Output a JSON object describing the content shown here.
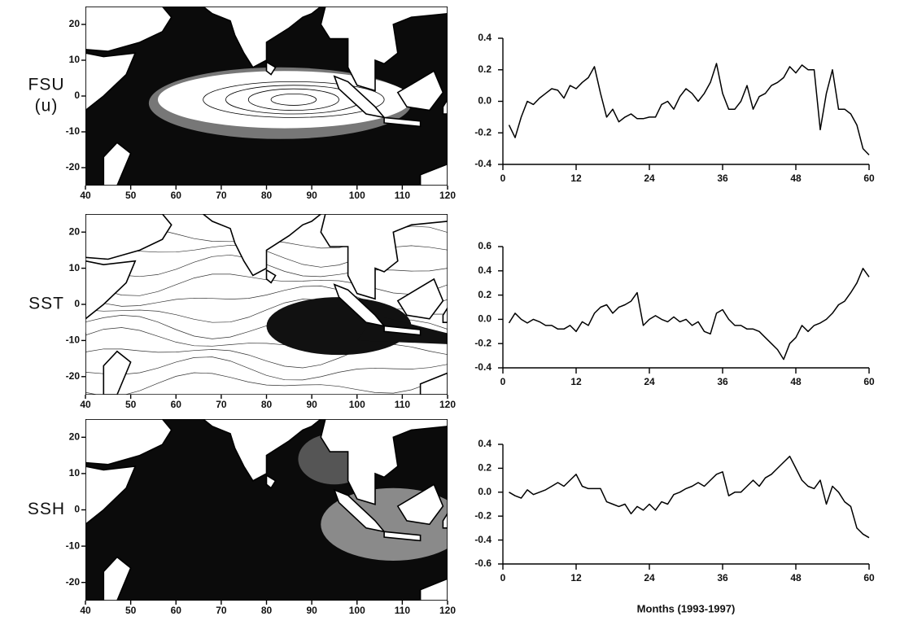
{
  "chart_data": [
    {
      "type": "map",
      "label": [
        "FSU",
        "(u)"
      ],
      "variant": "fsu",
      "xlim": [
        40,
        120
      ],
      "xticks": [
        40,
        50,
        60,
        70,
        80,
        90,
        100,
        110,
        120
      ],
      "ylim": [
        -25,
        25
      ],
      "yticks": [
        20,
        10,
        0,
        -10,
        -20
      ]
    },
    {
      "type": "line",
      "color": "#000000",
      "x": [
        1,
        2,
        3,
        4,
        5,
        6,
        7,
        8,
        9,
        10,
        11,
        12,
        13,
        14,
        15,
        16,
        17,
        18,
        19,
        20,
        21,
        22,
        23,
        24,
        25,
        26,
        27,
        28,
        29,
        30,
        31,
        32,
        33,
        34,
        35,
        36,
        37,
        38,
        39,
        40,
        41,
        42,
        43,
        44,
        45,
        46,
        47,
        48,
        49,
        50,
        51,
        52,
        53,
        54,
        55,
        56,
        57,
        58,
        59,
        60
      ],
      "values": [
        -0.15,
        -0.23,
        -0.1,
        0.0,
        -0.02,
        0.02,
        0.05,
        0.08,
        0.07,
        0.02,
        0.1,
        0.08,
        0.12,
        0.15,
        0.22,
        0.05,
        -0.1,
        -0.05,
        -0.13,
        -0.1,
        -0.08,
        -0.11,
        -0.11,
        -0.1,
        -0.1,
        -0.02,
        0.0,
        -0.05,
        0.03,
        0.08,
        0.05,
        0.0,
        0.05,
        0.12,
        0.24,
        0.05,
        -0.05,
        -0.05,
        0.0,
        0.1,
        -0.05,
        0.03,
        0.05,
        0.1,
        0.12,
        0.15,
        0.22,
        0.18,
        0.23,
        0.2,
        0.2,
        -0.18,
        0.05,
        0.2,
        -0.05,
        -0.05,
        -0.08,
        -0.15,
        -0.3,
        -0.34
      ],
      "xlim": [
        0,
        60
      ],
      "xticks": [
        0,
        12,
        24,
        36,
        48,
        60
      ],
      "ylim": [
        -0.4,
        0.4
      ],
      "yticks": [
        0.4,
        0.2,
        {
          "value": 0,
          "label": "0.0"
        },
        -0.2,
        -0.4
      ]
    },
    {
      "type": "map",
      "label": [
        "SST"
      ],
      "variant": "sst",
      "xlim": [
        40,
        120
      ],
      "xticks": [
        40,
        50,
        60,
        70,
        80,
        90,
        100,
        110,
        120
      ],
      "ylim": [
        -25,
        25
      ],
      "yticks": [
        20,
        10,
        0,
        -10,
        -20
      ]
    },
    {
      "type": "line",
      "color": "#000000",
      "x": [
        1,
        2,
        3,
        4,
        5,
        6,
        7,
        8,
        9,
        10,
        11,
        12,
        13,
        14,
        15,
        16,
        17,
        18,
        19,
        20,
        21,
        22,
        23,
        24,
        25,
        26,
        27,
        28,
        29,
        30,
        31,
        32,
        33,
        34,
        35,
        36,
        37,
        38,
        39,
        40,
        41,
        42,
        43,
        44,
        45,
        46,
        47,
        48,
        49,
        50,
        51,
        52,
        53,
        54,
        55,
        56,
        57,
        58,
        59,
        60
      ],
      "values": [
        -0.03,
        0.05,
        0.0,
        -0.03,
        0.0,
        -0.02,
        -0.05,
        -0.05,
        -0.08,
        -0.08,
        -0.05,
        -0.1,
        -0.02,
        -0.05,
        0.05,
        0.1,
        0.12,
        0.05,
        0.1,
        0.12,
        0.15,
        0.22,
        -0.05,
        0.0,
        0.03,
        0.0,
        -0.02,
        0.02,
        -0.02,
        0.0,
        -0.05,
        -0.02,
        -0.1,
        -0.12,
        0.05,
        0.08,
        0.0,
        -0.05,
        -0.05,
        -0.08,
        -0.08,
        -0.1,
        -0.15,
        -0.2,
        -0.25,
        -0.33,
        -0.2,
        -0.15,
        -0.05,
        -0.1,
        -0.05,
        -0.03,
        0.0,
        0.05,
        0.12,
        0.15,
        0.22,
        0.3,
        0.42,
        0.35
      ],
      "xlim": [
        0,
        60
      ],
      "xticks": [
        0,
        12,
        24,
        36,
        48,
        60
      ],
      "ylim": [
        -0.4,
        0.6
      ],
      "yticks": [
        0.6,
        0.4,
        0.2,
        {
          "value": 0,
          "label": "0.0"
        },
        -0.2,
        -0.4
      ]
    },
    {
      "type": "map",
      "label": [
        "SSH"
      ],
      "variant": "ssh",
      "xlim": [
        40,
        120
      ],
      "xticks": [
        40,
        50,
        60,
        70,
        80,
        90,
        100,
        110,
        120
      ],
      "ylim": [
        -25,
        25
      ],
      "yticks": [
        20,
        10,
        0,
        -10,
        -20
      ]
    },
    {
      "type": "line",
      "color": "#000000",
      "xlabel": "Months (1993-1997)",
      "x": [
        1,
        2,
        3,
        4,
        5,
        6,
        7,
        8,
        9,
        10,
        11,
        12,
        13,
        14,
        15,
        16,
        17,
        18,
        19,
        20,
        21,
        22,
        23,
        24,
        25,
        26,
        27,
        28,
        29,
        30,
        31,
        32,
        33,
        34,
        35,
        36,
        37,
        38,
        39,
        40,
        41,
        42,
        43,
        44,
        45,
        46,
        47,
        48,
        49,
        50,
        51,
        52,
        53,
        54,
        55,
        56,
        57,
        58,
        59,
        60
      ],
      "values": [
        0.0,
        -0.03,
        -0.05,
        0.02,
        -0.02,
        0.0,
        0.02,
        0.05,
        0.08,
        0.05,
        0.1,
        0.15,
        0.05,
        0.03,
        0.03,
        0.03,
        -0.08,
        -0.1,
        -0.12,
        -0.1,
        -0.18,
        -0.12,
        -0.15,
        -0.1,
        -0.15,
        -0.08,
        -0.1,
        -0.02,
        0.0,
        0.03,
        0.05,
        0.08,
        0.05,
        0.1,
        0.15,
        0.17,
        -0.03,
        0.0,
        0.0,
        0.05,
        0.1,
        0.05,
        0.12,
        0.15,
        0.2,
        0.25,
        0.3,
        0.2,
        0.1,
        0.05,
        0.03,
        0.1,
        -0.1,
        0.05,
        0.0,
        -0.08,
        -0.12,
        -0.3,
        -0.35,
        -0.38
      ],
      "xlim": [
        0,
        60
      ],
      "xticks": [
        0,
        12,
        24,
        36,
        48,
        60
      ],
      "ylim": [
        -0.6,
        0.4
      ],
      "yticks": [
        0.4,
        0.2,
        {
          "value": 0,
          "label": "0.0"
        },
        -0.2,
        -0.4,
        -0.6
      ]
    }
  ]
}
